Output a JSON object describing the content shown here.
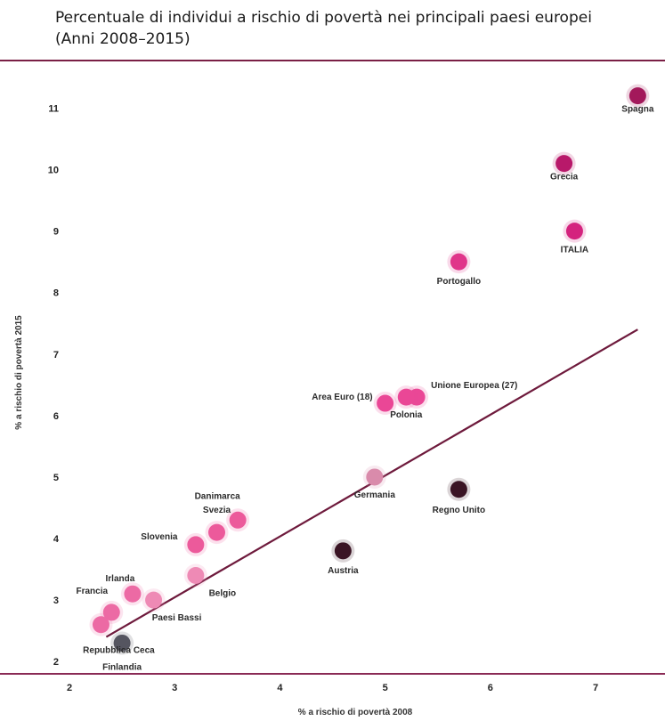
{
  "title_line1": "Percentuale di individui a rischio di povertà nei principali paesi europei",
  "title_line2": "(Anni 2008–2015)",
  "chart_data": {
    "type": "scatter",
    "xlabel": "% a rischio di povertà 2008",
    "ylabel": "% a rischio di povertà 2015",
    "xlim": [
      2,
      7.6
    ],
    "ylim": [
      1.8,
      11.6
    ],
    "xticks": [
      2,
      3,
      4,
      5,
      6,
      7
    ],
    "yticks": [
      2,
      3,
      4,
      5,
      6,
      7,
      8,
      9,
      10,
      11
    ],
    "trendline": {
      "x": [
        2.35,
        7.4
      ],
      "y": [
        2.4,
        7.4
      ],
      "color": "#6e1a3c"
    },
    "points": [
      {
        "label": "Spagna",
        "x": 7.4,
        "y": 11.2,
        "color": "#a3195b",
        "lx": 0,
        "ly": 18,
        "anchor": "middle"
      },
      {
        "label": "Grecia",
        "x": 6.7,
        "y": 10.1,
        "color": "#b8196a",
        "lx": 0,
        "ly": 18,
        "anchor": "middle"
      },
      {
        "label": "ITALIA",
        "x": 6.8,
        "y": 9.0,
        "color": "#d4237e",
        "lx": 0,
        "ly": 24,
        "anchor": "middle"
      },
      {
        "label": "Portogallo",
        "x": 5.7,
        "y": 8.5,
        "color": "#e0348a",
        "lx": 0,
        "ly": 25,
        "anchor": "middle"
      },
      {
        "label": "Area Euro (18)",
        "x": 5.0,
        "y": 6.2,
        "color": "#ea4796",
        "lx": -14,
        "ly": -4,
        "anchor": "end"
      },
      {
        "label": "Unione Europea (27)",
        "x": 5.3,
        "y": 6.3,
        "color": "#ea4796",
        "lx": 16,
        "ly": -10,
        "anchor": "start"
      },
      {
        "label": "Polonia",
        "x": 5.2,
        "y": 6.3,
        "color": "#ea4796",
        "lx": 0,
        "ly": 23,
        "anchor": "middle"
      },
      {
        "label": "Germania",
        "x": 4.9,
        "y": 5.0,
        "color": "#d98bab",
        "lx": 0,
        "ly": 23,
        "anchor": "middle"
      },
      {
        "label": "Regno Unito",
        "x": 5.7,
        "y": 4.8,
        "color": "#3a1424",
        "lx": 0,
        "ly": 26,
        "anchor": "middle"
      },
      {
        "label": "Austria",
        "x": 4.6,
        "y": 3.8,
        "color": "#3a1424",
        "lx": 0,
        "ly": 25,
        "anchor": "middle"
      },
      {
        "label": "Danimarca",
        "x": 3.6,
        "y": 4.3,
        "color": "#ec5a9b",
        "lx": -23,
        "ly": -24,
        "anchor": "middle"
      },
      {
        "label": "Svezia",
        "x": 3.4,
        "y": 4.1,
        "color": "#ec5a9b",
        "lx": 0,
        "ly": -22,
        "anchor": "middle"
      },
      {
        "label": "Slovenia",
        "x": 3.2,
        "y": 3.9,
        "color": "#ec5a9b",
        "lx": -41,
        "ly": -6,
        "anchor": "middle"
      },
      {
        "label": "Belgio",
        "x": 3.2,
        "y": 3.4,
        "color": "#ee8ab5",
        "lx": 30,
        "ly": 23,
        "anchor": "middle"
      },
      {
        "label": "Irlanda",
        "x": 2.6,
        "y": 3.1,
        "color": "#ec6aa4",
        "lx": -14,
        "ly": -14,
        "anchor": "middle"
      },
      {
        "label": "Paesi Bassi",
        "x": 2.8,
        "y": 3.0,
        "color": "#ee8ab5",
        "lx": 26,
        "ly": 23,
        "anchor": "middle"
      },
      {
        "label": "Francia",
        "x": 2.4,
        "y": 2.8,
        "color": "#ec6aa4",
        "lx": -22,
        "ly": -21,
        "anchor": "middle"
      },
      {
        "label": "Repubblica Ceca",
        "x": 2.3,
        "y": 2.6,
        "color": "#ec6aa4",
        "lx": 20,
        "ly": 32,
        "anchor": "middle"
      },
      {
        "label": "Finlandia",
        "x": 2.5,
        "y": 2.3,
        "color": "#555560",
        "lx": 0,
        "ly": 30,
        "anchor": "middle"
      }
    ]
  }
}
